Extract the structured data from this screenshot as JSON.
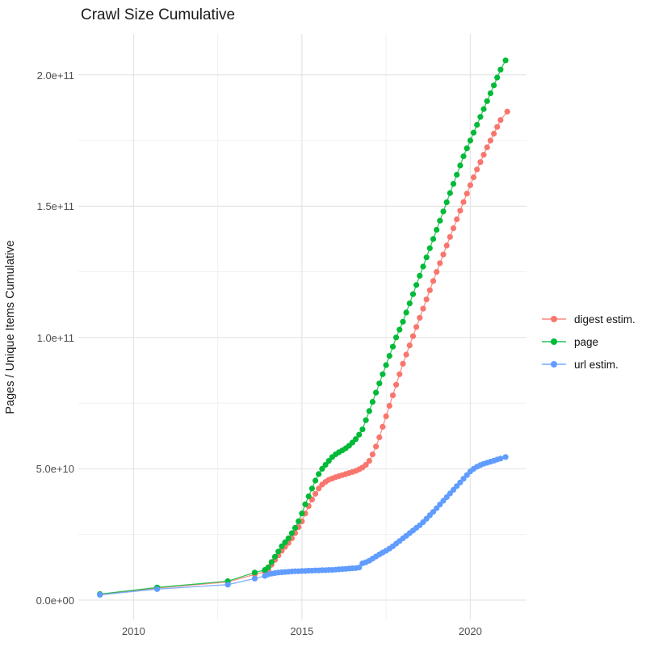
{
  "chart_data": {
    "type": "line",
    "title": "Crawl Size Cumulative",
    "xlabel": "",
    "ylabel": "Pages / Unique Items Cumulative",
    "values_unit": "1e9 pages (y axis rendered in scientific notation)",
    "x_domain": [
      2008.36,
      2021.67
    ],
    "y_domain_e9": [
      -7.4,
      215.6
    ],
    "grid": true,
    "x_ticks": [
      {
        "year": 2010,
        "label": "2010"
      },
      {
        "year": 2015,
        "label": "2015"
      },
      {
        "year": 2020,
        "label": "2020"
      }
    ],
    "x_minor_years": [
      2012.5,
      2017.5
    ],
    "y_ticks": [
      {
        "value_e9": 0,
        "label": "0.0e+00"
      },
      {
        "value_e9": 50,
        "label": "5.0e+10"
      },
      {
        "value_e9": 100,
        "label": "1.0e+11"
      },
      {
        "value_e9": 150,
        "label": "1.5e+11"
      },
      {
        "value_e9": 200,
        "label": "2.0e+11"
      }
    ],
    "y_minor_e9": [
      25,
      75,
      125,
      175
    ],
    "style": {
      "major_grid_color": "#e3e3e3",
      "minor_grid_color": "#f0f0f0",
      "axis_text_color": "#4d4d4d",
      "title_color": "#1a1a1a",
      "point_radius": 3.6,
      "line_width": 1.3
    },
    "legend": {
      "position": "right"
    },
    "series": [
      {
        "name": "digest estim.",
        "color": "#F8766D",
        "points": [
          [
            2009,
            2.2
          ],
          [
            2010.7,
            4.6
          ],
          [
            2012.8,
            6.9
          ],
          [
            2013.6,
            9.8
          ],
          [
            2013.9,
            10.8
          ],
          [
            2014,
            11.8
          ],
          [
            2014.1,
            13.5
          ],
          [
            2014.2,
            15.3
          ],
          [
            2014.3,
            17
          ],
          [
            2014.4,
            18.8
          ],
          [
            2014.5,
            20.3
          ],
          [
            2014.6,
            21.8
          ],
          [
            2014.7,
            23.5
          ],
          [
            2014.8,
            25.5
          ],
          [
            2014.9,
            27.8
          ],
          [
            2015,
            30
          ],
          [
            2015.1,
            33
          ],
          [
            2015.2,
            35.8
          ],
          [
            2015.3,
            38.3
          ],
          [
            2015.4,
            40.5
          ],
          [
            2015.5,
            42.5
          ],
          [
            2015.6,
            44
          ],
          [
            2015.7,
            45
          ],
          [
            2015.8,
            45.8
          ],
          [
            2015.9,
            46.3
          ],
          [
            2016,
            46.8
          ],
          [
            2016.1,
            47.2
          ],
          [
            2016.2,
            47.6
          ],
          [
            2016.3,
            48
          ],
          [
            2016.4,
            48.4
          ],
          [
            2016.5,
            48.8
          ],
          [
            2016.6,
            49.2
          ],
          [
            2016.7,
            49.8
          ],
          [
            2016.8,
            50.5
          ],
          [
            2016.9,
            51.5
          ],
          [
            2017,
            53
          ],
          [
            2017.1,
            55.5
          ],
          [
            2017.2,
            58.5
          ],
          [
            2017.3,
            62
          ],
          [
            2017.4,
            66
          ],
          [
            2017.5,
            70
          ],
          [
            2017.6,
            74
          ],
          [
            2017.7,
            78
          ],
          [
            2017.8,
            82
          ],
          [
            2017.9,
            86
          ],
          [
            2018,
            90
          ],
          [
            2018.1,
            93.5
          ],
          [
            2018.2,
            97
          ],
          [
            2018.3,
            100.5
          ],
          [
            2018.4,
            104
          ],
          [
            2018.5,
            107.5
          ],
          [
            2018.6,
            111
          ],
          [
            2018.7,
            114.5
          ],
          [
            2018.8,
            118
          ],
          [
            2018.9,
            121.5
          ],
          [
            2019,
            125
          ],
          [
            2019.1,
            128.3
          ],
          [
            2019.2,
            131.6
          ],
          [
            2019.3,
            135
          ],
          [
            2019.4,
            138.3
          ],
          [
            2019.5,
            141.6
          ],
          [
            2019.6,
            145
          ],
          [
            2019.7,
            148.3
          ],
          [
            2019.8,
            151.6
          ],
          [
            2019.9,
            154.8
          ],
          [
            2020,
            158
          ],
          [
            2020.1,
            161
          ],
          [
            2020.2,
            164
          ],
          [
            2020.3,
            166.8
          ],
          [
            2020.4,
            169.6
          ],
          [
            2020.5,
            172.4
          ],
          [
            2020.6,
            175
          ],
          [
            2020.7,
            177.6
          ],
          [
            2020.8,
            180.2
          ],
          [
            2020.9,
            182.8
          ],
          [
            2021.1,
            186
          ]
        ]
      },
      {
        "name": "page",
        "color": "#00BA38",
        "points": [
          [
            2009,
            2.3
          ],
          [
            2010.7,
            4.8
          ],
          [
            2012.8,
            7.2
          ],
          [
            2013.6,
            10.5
          ],
          [
            2013.9,
            11.5
          ],
          [
            2014,
            12.5
          ],
          [
            2014.1,
            14.5
          ],
          [
            2014.2,
            16.5
          ],
          [
            2014.3,
            18.5
          ],
          [
            2014.4,
            20.5
          ],
          [
            2014.5,
            22
          ],
          [
            2014.6,
            23.5
          ],
          [
            2014.7,
            25.5
          ],
          [
            2014.8,
            27.5
          ],
          [
            2014.9,
            30
          ],
          [
            2015,
            33
          ],
          [
            2015.1,
            36.5
          ],
          [
            2015.2,
            39.5
          ],
          [
            2015.3,
            42.5
          ],
          [
            2015.4,
            45.5
          ],
          [
            2015.5,
            48
          ],
          [
            2015.6,
            50
          ],
          [
            2015.7,
            51.5
          ],
          [
            2015.8,
            53
          ],
          [
            2015.9,
            54.5
          ],
          [
            2016,
            55.5
          ],
          [
            2016.1,
            56.3
          ],
          [
            2016.2,
            57
          ],
          [
            2016.3,
            57.8
          ],
          [
            2016.4,
            58.8
          ],
          [
            2016.5,
            60
          ],
          [
            2016.6,
            61.3
          ],
          [
            2016.7,
            63
          ],
          [
            2016.8,
            65
          ],
          [
            2016.9,
            68.5
          ],
          [
            2017,
            72
          ],
          [
            2017.1,
            75.5
          ],
          [
            2017.2,
            79
          ],
          [
            2017.3,
            82.5
          ],
          [
            2017.4,
            86
          ],
          [
            2017.5,
            89.5
          ],
          [
            2017.6,
            93
          ],
          [
            2017.7,
            96.5
          ],
          [
            2017.8,
            100
          ],
          [
            2017.9,
            103
          ],
          [
            2018,
            106
          ],
          [
            2018.1,
            109.5
          ],
          [
            2018.2,
            113
          ],
          [
            2018.3,
            116.5
          ],
          [
            2018.4,
            120
          ],
          [
            2018.5,
            123.5
          ],
          [
            2018.6,
            127
          ],
          [
            2018.7,
            130.5
          ],
          [
            2018.8,
            134
          ],
          [
            2018.9,
            137.5
          ],
          [
            2019,
            141
          ],
          [
            2019.1,
            144.5
          ],
          [
            2019.2,
            148
          ],
          [
            2019.3,
            151.5
          ],
          [
            2019.4,
            155
          ],
          [
            2019.5,
            158.5
          ],
          [
            2019.6,
            162
          ],
          [
            2019.7,
            165.5
          ],
          [
            2019.8,
            169
          ],
          [
            2019.9,
            172
          ],
          [
            2020,
            175
          ],
          [
            2020.1,
            178
          ],
          [
            2020.2,
            181
          ],
          [
            2020.3,
            184
          ],
          [
            2020.4,
            187
          ],
          [
            2020.5,
            190
          ],
          [
            2020.6,
            193
          ],
          [
            2020.7,
            196
          ],
          [
            2020.8,
            199
          ],
          [
            2020.9,
            202
          ],
          [
            2021.05,
            205.5
          ]
        ]
      },
      {
        "name": "url estim.",
        "color": "#619CFF",
        "points": [
          [
            2009,
            2
          ],
          [
            2010.7,
            4.2
          ],
          [
            2012.8,
            5.9
          ],
          [
            2013.6,
            8.2
          ],
          [
            2013.9,
            9.2
          ],
          [
            2014,
            9.8
          ],
          [
            2014.1,
            10.1
          ],
          [
            2014.2,
            10.3
          ],
          [
            2014.3,
            10.5
          ],
          [
            2014.4,
            10.6
          ],
          [
            2014.5,
            10.7
          ],
          [
            2014.6,
            10.8
          ],
          [
            2014.7,
            10.9
          ],
          [
            2014.8,
            11
          ],
          [
            2014.9,
            11
          ],
          [
            2015,
            11.1
          ],
          [
            2015.1,
            11.1
          ],
          [
            2015.2,
            11.2
          ],
          [
            2015.3,
            11.2
          ],
          [
            2015.4,
            11.3
          ],
          [
            2015.5,
            11.3
          ],
          [
            2015.6,
            11.4
          ],
          [
            2015.7,
            11.4
          ],
          [
            2015.8,
            11.5
          ],
          [
            2015.9,
            11.5
          ],
          [
            2016,
            11.6
          ],
          [
            2016.1,
            11.7
          ],
          [
            2016.2,
            11.8
          ],
          [
            2016.3,
            11.9
          ],
          [
            2016.4,
            12
          ],
          [
            2016.5,
            12.1
          ],
          [
            2016.6,
            12.2
          ],
          [
            2016.7,
            12.4
          ],
          [
            2016.8,
            14
          ],
          [
            2016.9,
            14.4
          ],
          [
            2017,
            15
          ],
          [
            2017.1,
            15.8
          ],
          [
            2017.2,
            16.6
          ],
          [
            2017.3,
            17.4
          ],
          [
            2017.4,
            18.1
          ],
          [
            2017.5,
            18.8
          ],
          [
            2017.6,
            19.6
          ],
          [
            2017.7,
            20.5
          ],
          [
            2017.8,
            21.5
          ],
          [
            2017.9,
            22.5
          ],
          [
            2018,
            23.5
          ],
          [
            2018.1,
            24.5
          ],
          [
            2018.2,
            25.5
          ],
          [
            2018.3,
            26.5
          ],
          [
            2018.4,
            27.5
          ],
          [
            2018.5,
            28.5
          ],
          [
            2018.6,
            29.7
          ],
          [
            2018.7,
            31
          ],
          [
            2018.8,
            32.3
          ],
          [
            2018.9,
            33.6
          ],
          [
            2019,
            35
          ],
          [
            2019.1,
            36.4
          ],
          [
            2019.2,
            37.8
          ],
          [
            2019.3,
            39.2
          ],
          [
            2019.4,
            40.6
          ],
          [
            2019.5,
            42
          ],
          [
            2019.6,
            43.4
          ],
          [
            2019.7,
            44.8
          ],
          [
            2019.8,
            46.2
          ],
          [
            2019.9,
            47.6
          ],
          [
            2020,
            49
          ],
          [
            2020.1,
            50
          ],
          [
            2020.2,
            50.8
          ],
          [
            2020.3,
            51.4
          ],
          [
            2020.4,
            51.9
          ],
          [
            2020.5,
            52.3
          ],
          [
            2020.6,
            52.7
          ],
          [
            2020.7,
            53.1
          ],
          [
            2020.8,
            53.5
          ],
          [
            2020.9,
            53.9
          ],
          [
            2021.05,
            54.5
          ]
        ]
      }
    ]
  }
}
